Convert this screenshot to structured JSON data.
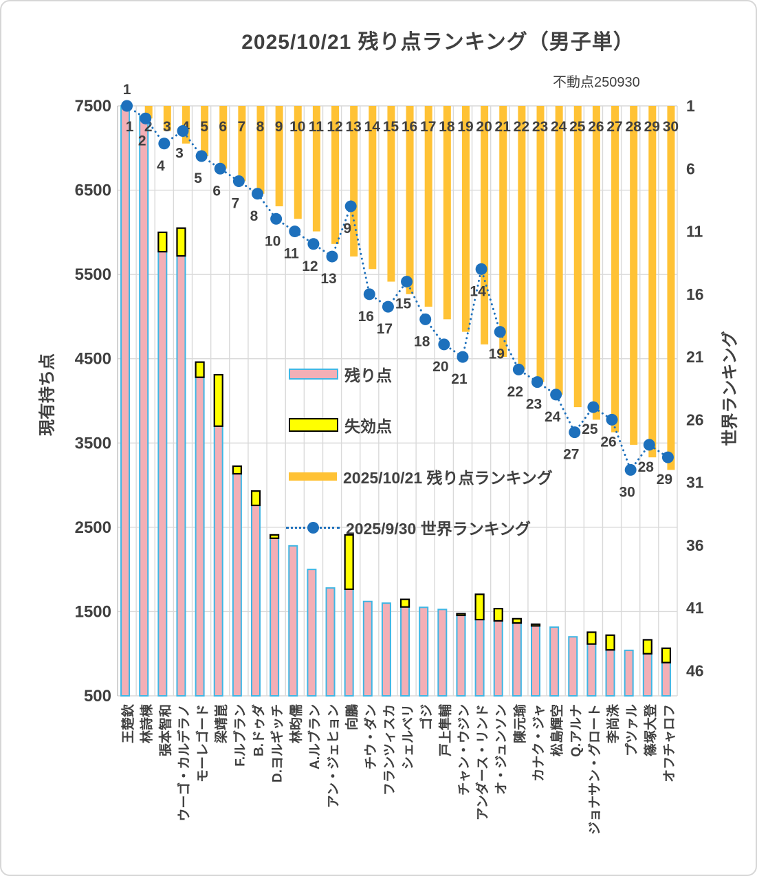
{
  "title": "2025/10/21 残り点ランキング（男子単）",
  "annotation": "不動点250930",
  "legend": {
    "remaining": "残り点",
    "expired": "失効点",
    "ranking": "2025/10/21 残り点ランキング",
    "world": "2025/9/30 世界ランキング"
  },
  "axes": {
    "left_title": "現有持ち点",
    "right_title": "世界ランキング",
    "left_ticks": [
      7500,
      6500,
      5500,
      4500,
      3500,
      2500,
      1500,
      500
    ],
    "right_ticks": [
      1,
      6,
      11,
      16,
      21,
      26,
      31,
      36,
      41,
      46
    ]
  },
  "chart_data": {
    "type": "bar",
    "subtype": "combo bar+line, dual axis",
    "title": "2025/10/21 残り点ランキング（男子単）",
    "xlabel": "",
    "ylabel_left": "現有持ち点",
    "ylabel_right": "世界ランキング",
    "ylim_left": [
      500,
      7500
    ],
    "ylim_right_inverted": [
      1,
      48
    ],
    "grid": true,
    "legend_position": "middle-left of plot",
    "categories": [
      "王楚欽",
      "林詩棟",
      "張本智和",
      "ウーゴ・カルデラノ",
      "モーレゴード",
      "梁靖崑",
      "F.ルブラン",
      "B.ドゥダ",
      "D.ヨルギッチ",
      "林昀儒",
      "A.ルブラン",
      "アン・ジェヒョン",
      "向鵬",
      "チウ・ダン",
      "フランツィスカ",
      "シェルベリ",
      "ゴジ",
      "戸上隼輔",
      "チャン・ウジン",
      "アンダース・リンド",
      "オ・ジュンソン",
      "陳元瑜",
      "カナク・ジャ",
      "松島輝空",
      "Q.アルナ",
      "ジョナサン・グロート",
      "李尚洙",
      "プツァル",
      "篠塚大登",
      "オフチャロフ"
    ],
    "series": [
      {
        "name": "残り点",
        "type": "bar",
        "axis": "left",
        "color": "#F3AFB6",
        "border": "#3FB6E4",
        "values": [
          7500,
          7380,
          5770,
          5720,
          4280,
          3700,
          3135,
          2760,
          2370,
          2280,
          2000,
          1780,
          1765,
          1620,
          1600,
          1555,
          1550,
          1525,
          1455,
          1405,
          1390,
          1365,
          1330,
          1315,
          1200,
          1115,
          1045,
          1040,
          1000,
          895
        ]
      },
      {
        "name": "失効点",
        "type": "bar",
        "axis": "left",
        "stacked_on": "残り点",
        "color": "#FFFF00",
        "border": "#000000",
        "values": [
          0,
          0,
          230,
          330,
          180,
          610,
          90,
          170,
          40,
          0,
          0,
          0,
          645,
          0,
          0,
          90,
          0,
          0,
          20,
          300,
          145,
          50,
          20,
          0,
          0,
          140,
          175,
          0,
          165,
          170
        ]
      },
      {
        "name": "2025/10/21 残り点ランキング",
        "type": "bar",
        "axis": "right",
        "color": "#FFC235",
        "values": [
          1,
          2,
          3,
          4,
          5,
          6,
          7,
          8,
          9,
          10,
          11,
          12,
          13,
          14,
          15,
          16,
          17,
          18,
          19,
          20,
          21,
          22,
          23,
          24,
          25,
          26,
          27,
          28,
          29,
          30
        ]
      },
      {
        "name": "2025/9/30 世界ランキング",
        "type": "line",
        "axis": "right",
        "color": "#1D70BC",
        "marker": "circle",
        "linestyle": "dotted",
        "values": [
          1,
          2,
          4,
          3,
          5,
          6,
          7,
          8,
          10,
          11,
          12,
          13,
          9,
          16,
          17,
          15,
          18,
          20,
          21,
          14,
          19,
          22,
          23,
          24,
          27,
          25,
          26,
          30,
          28,
          29
        ]
      }
    ]
  },
  "colors": {
    "text": "#404040",
    "grid": "#D9D9D9",
    "axis_line": "#BFBFBF",
    "remaining_fill": "#F3AFB6",
    "remaining_border": "#3FB6E4",
    "expired_fill": "#FFFF00",
    "expired_border": "#000000",
    "ranking_fill": "#FFC235",
    "world_line": "#1D70BC"
  }
}
